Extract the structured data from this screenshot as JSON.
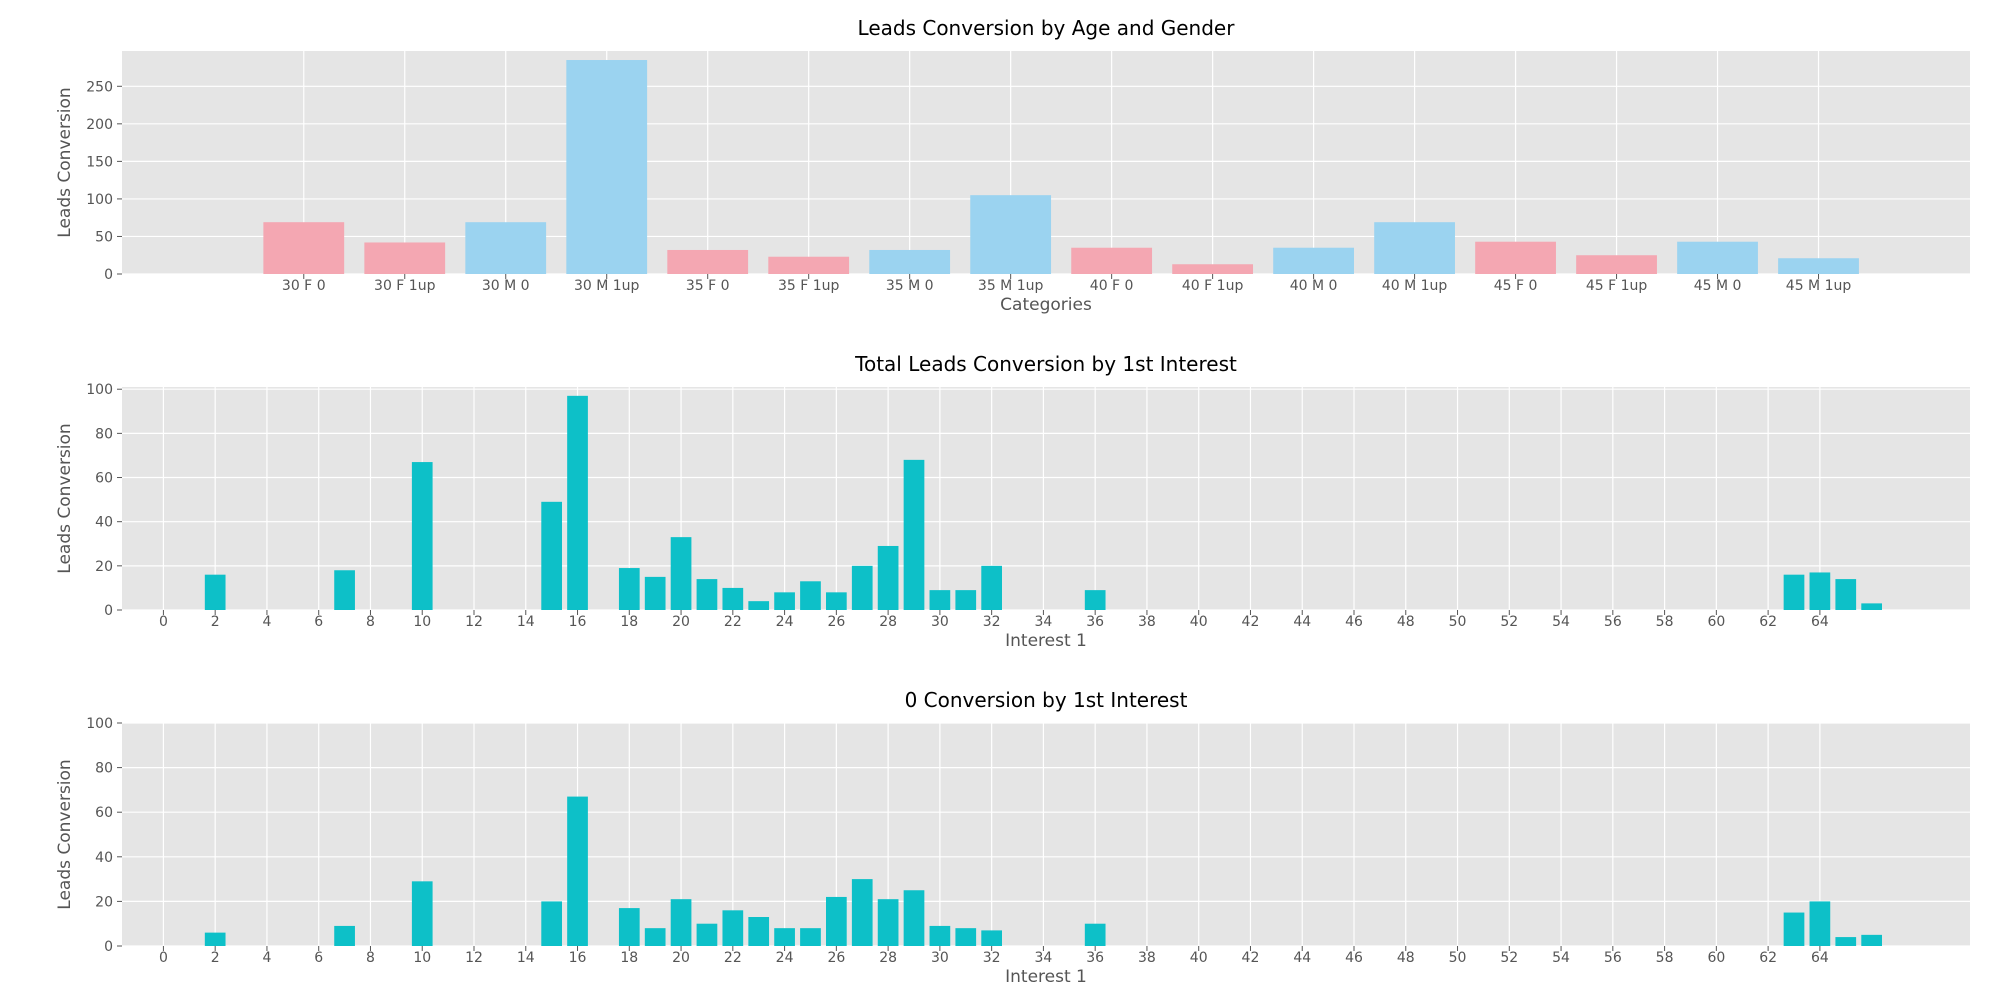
{
  "colors": {
    "background": "#ffffff",
    "plot_bg": "#e5e5e5",
    "grid": "#ffffff",
    "female": "#f4a7b2",
    "male": "#9bd3f0",
    "interest": "#0dc0c8",
    "tick_text": "#555555"
  },
  "chart_data": [
    {
      "type": "bar",
      "title": "Leads Conversion by Age and Gender",
      "xlabel": "Categories",
      "ylabel": "Leads Conversion",
      "categories": [
        "30 F 0",
        "30 F 1up",
        "30 M 0",
        "30 M 1up",
        "35 F 0",
        "35 F 1up",
        "35 M 0",
        "35 M 1up",
        "40 F 0",
        "40 F 1up",
        "40 M 0",
        "40 M 1up",
        "45 F 0",
        "45 F 1up",
        "45 M 0",
        "45 M 1up"
      ],
      "values": [
        69,
        42,
        69,
        285,
        32,
        23,
        32,
        105,
        35,
        13,
        35,
        69,
        43,
        25,
        43,
        21
      ],
      "bar_colors": [
        "female",
        "female",
        "male",
        "male",
        "female",
        "female",
        "male",
        "male",
        "female",
        "female",
        "male",
        "male",
        "female",
        "female",
        "male",
        "male"
      ],
      "ylim": [
        0,
        297
      ],
      "yticks": [
        0,
        50,
        100,
        150,
        200,
        250
      ],
      "xlim": [
        -1.8,
        16.5
      ],
      "grid": true
    },
    {
      "type": "bar",
      "title": "Total Leads Conversion by 1st Interest",
      "xlabel": "Interest 1",
      "ylabel": "Leads Conversion",
      "x": [
        2,
        7,
        10,
        15,
        16,
        18,
        19,
        20,
        21,
        22,
        23,
        24,
        25,
        26,
        27,
        28,
        29,
        30,
        31,
        32,
        36,
        63,
        64,
        65,
        66
      ],
      "values": [
        16,
        18,
        67,
        49,
        97,
        19,
        15,
        33,
        14,
        10,
        4,
        8,
        13,
        8,
        20,
        29,
        68,
        9,
        9,
        20,
        9,
        16,
        17,
        14,
        3
      ],
      "xticks": [
        0,
        2,
        4,
        6,
        8,
        10,
        12,
        14,
        16,
        18,
        20,
        22,
        24,
        26,
        28,
        30,
        32,
        34,
        36,
        38,
        40,
        42,
        44,
        46,
        48,
        50,
        52,
        54,
        56,
        58,
        60,
        62,
        64
      ],
      "xlim": [
        -1.6,
        69.8
      ],
      "ylim": [
        0,
        101
      ],
      "yticks": [
        0,
        20,
        40,
        60,
        80,
        100
      ],
      "grid": true
    },
    {
      "type": "bar",
      "title": "0 Conversion by 1st Interest",
      "xlabel": "Interest 1",
      "ylabel": "Leads Conversion",
      "x": [
        2,
        7,
        10,
        15,
        16,
        18,
        19,
        20,
        21,
        22,
        23,
        24,
        25,
        26,
        27,
        28,
        29,
        30,
        31,
        32,
        36,
        63,
        64,
        65,
        66
      ],
      "values": [
        6,
        9,
        29,
        20,
        67,
        17,
        8,
        21,
        10,
        16,
        13,
        8,
        8,
        22,
        30,
        21,
        25,
        9,
        8,
        7,
        10,
        15,
        20,
        4,
        5
      ],
      "xticks": [
        0,
        2,
        4,
        6,
        8,
        10,
        12,
        14,
        16,
        18,
        20,
        22,
        24,
        26,
        28,
        30,
        32,
        34,
        36,
        38,
        40,
        42,
        44,
        46,
        48,
        50,
        52,
        54,
        56,
        58,
        60,
        62,
        64
      ],
      "xlim": [
        -1.6,
        69.8
      ],
      "ylim": [
        0,
        100
      ],
      "yticks": [
        0,
        20,
        40,
        60,
        80,
        100
      ],
      "grid": true
    }
  ]
}
